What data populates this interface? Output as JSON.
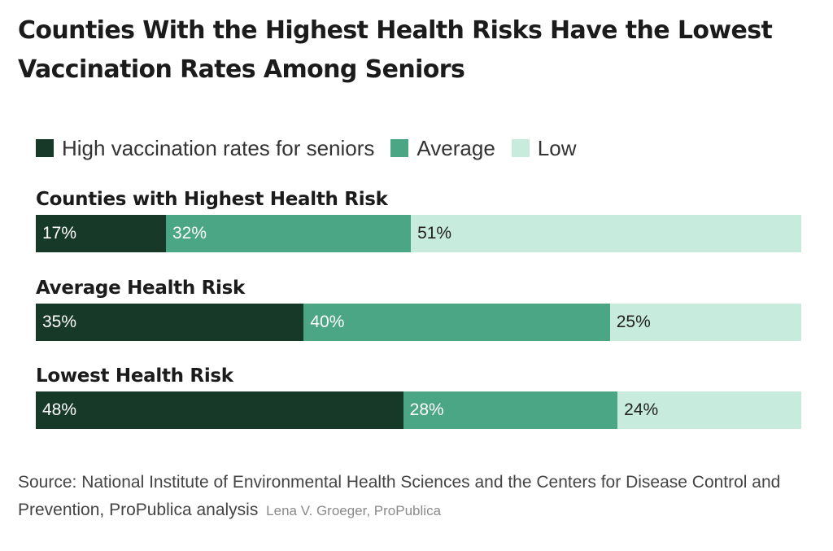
{
  "title": "Counties With the Highest Health Risks Have the Lowest Vaccination Rates Among Seniors",
  "legend": [
    {
      "label": "High vaccination rates for seniors",
      "color": "#173a28"
    },
    {
      "label": "Average",
      "color": "#4aa685"
    },
    {
      "label": "Low",
      "color": "#c7ebdc"
    }
  ],
  "chart_data": {
    "type": "bar",
    "orientation": "horizontal",
    "stacked": true,
    "unit": "%",
    "categories": [
      "Counties with Highest Health Risk",
      "Average Health Risk",
      "Lowest Health Risk"
    ],
    "series": [
      {
        "name": "High vaccination rates for seniors",
        "values": [
          17,
          35,
          48
        ],
        "labels": [
          "17%",
          "35%",
          "48%"
        ],
        "color": "#173a28",
        "text_color": "#ffffff"
      },
      {
        "name": "Average",
        "values": [
          32,
          40,
          28
        ],
        "labels": [
          "32%",
          "40%",
          "28%"
        ],
        "color": "#4aa685",
        "text_color": "#ffffff"
      },
      {
        "name": "Low",
        "values": [
          51,
          25,
          24
        ],
        "labels": [
          "51%",
          "25%",
          "24%"
        ],
        "color": "#c7ebdc",
        "text_color": "#222222"
      }
    ],
    "legend_position": "top"
  },
  "source": "Source: National Institute of Environmental Health Sciences and the Centers for Disease Control and Prevention, ProPublica analysis",
  "credit": "Lena V. Groeger, ProPublica"
}
